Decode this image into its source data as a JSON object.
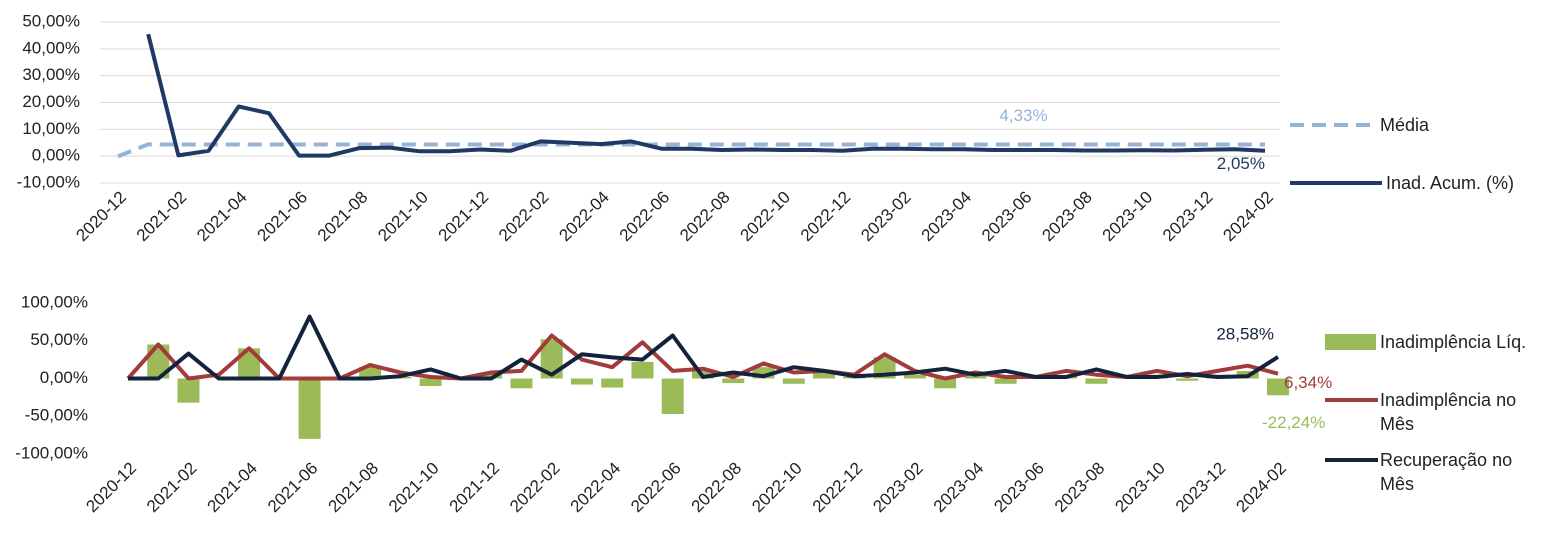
{
  "chart_data": [
    {
      "type": "line",
      "grid": true,
      "categories": [
        "2020-12",
        null,
        "2021-02",
        null,
        "2021-04",
        null,
        "2021-06",
        null,
        "2021-08",
        null,
        "2021-10",
        null,
        "2021-12",
        null,
        "2022-02",
        null,
        "2022-04",
        null,
        "2022-06",
        null,
        "2022-08",
        null,
        "2022-10",
        null,
        "2022-12",
        null,
        "2023-02",
        null,
        "2023-04",
        null,
        "2023-06",
        null,
        "2023-08",
        null,
        "2023-10",
        null,
        "2023-12",
        null,
        "2024-02"
      ],
      "ylim": [
        -10,
        50
      ],
      "yticks": [
        {
          "value": -10,
          "label": "-10,00%"
        },
        {
          "value": 0,
          "label": "0,00%"
        },
        {
          "value": 10,
          "label": "10,00%"
        },
        {
          "value": 20,
          "label": "20,00%"
        },
        {
          "value": 30,
          "label": "30,00%"
        },
        {
          "value": 40,
          "label": "40,00%"
        },
        {
          "value": 50,
          "label": "50,00%"
        }
      ],
      "series": [
        {
          "name": "Média",
          "color": "#95b3d7",
          "dashed": true,
          "values": [
            0,
            4.4,
            4.33,
            4.33,
            4.33,
            4.33,
            4.33,
            4.33,
            4.33,
            4.33,
            4.33,
            4.33,
            4.33,
            4.33,
            4.33,
            4.33,
            4.33,
            4.33,
            4.33,
            4.33,
            4.33,
            4.33,
            4.33,
            4.33,
            4.33,
            4.33,
            4.33,
            4.33,
            4.33,
            4.33,
            4.33,
            4.33,
            4.33,
            4.33,
            4.33,
            4.33,
            4.33,
            4.33,
            4.33
          ],
          "value_labels": [
            null,
            null,
            null,
            null,
            null,
            null,
            null,
            null,
            null,
            null,
            null,
            null,
            null,
            null,
            null,
            null,
            null,
            null,
            null,
            null,
            null,
            null,
            null,
            null,
            null,
            null,
            null,
            null,
            null,
            null,
            "4,33%",
            null,
            null,
            null,
            null,
            null,
            null,
            null,
            null
          ]
        },
        {
          "name": "Inad. Acum. (%)",
          "color": "#1f3864",
          "dashed": false,
          "values": [
            null,
            45.5,
            0.3,
            2,
            18.5,
            16,
            0.2,
            0.2,
            3,
            3.2,
            1.8,
            1.8,
            2.5,
            2,
            5.5,
            5,
            4.5,
            5.5,
            2.8,
            2.8,
            2.3,
            2.5,
            2.3,
            2.3,
            2,
            2.8,
            2.8,
            2.6,
            2.6,
            2.3,
            2.3,
            2.3,
            2.1,
            2.1,
            2.2,
            2.1,
            2.4,
            2.6,
            2.05
          ],
          "value_labels": [
            null,
            null,
            null,
            null,
            null,
            null,
            null,
            null,
            null,
            null,
            null,
            null,
            null,
            null,
            null,
            null,
            null,
            null,
            null,
            null,
            null,
            null,
            null,
            null,
            null,
            null,
            null,
            null,
            null,
            null,
            null,
            null,
            null,
            null,
            null,
            null,
            null,
            null,
            "2,05%"
          ]
        }
      ]
    },
    {
      "type": "combo",
      "grid": false,
      "categories": [
        "2020-12",
        null,
        "2021-02",
        null,
        "2021-04",
        null,
        "2021-06",
        null,
        "2021-08",
        null,
        "2021-10",
        null,
        "2021-12",
        null,
        "2022-02",
        null,
        "2022-04",
        null,
        "2022-06",
        null,
        "2022-08",
        null,
        "2022-10",
        null,
        "2022-12",
        null,
        "2023-02",
        null,
        "2023-04",
        null,
        "2023-06",
        null,
        "2023-08",
        null,
        "2023-10",
        null,
        "2023-12",
        null,
        "2024-02"
      ],
      "ylim": [
        -100,
        100
      ],
      "yticks": [
        {
          "value": -100,
          "label": "-100,00%"
        },
        {
          "value": -50,
          "label": "-50,00%"
        },
        {
          "value": 0,
          "label": "0,00%"
        },
        {
          "value": 50,
          "label": "50,00%"
        },
        {
          "value": 100,
          "label": "100,00%"
        }
      ],
      "series": [
        {
          "name": "Inadimplência Líq.",
          "type": "bar",
          "color": "#9bbb59",
          "values": [
            0,
            45,
            -32,
            0,
            40,
            0,
            -80,
            0,
            15,
            2,
            -10,
            0,
            8,
            -13,
            52,
            -8,
            -12,
            22,
            -47,
            10,
            -6,
            15,
            -7,
            8,
            2,
            28,
            5,
            -13,
            5,
            -7,
            2,
            4,
            -7,
            2,
            5,
            -3,
            5,
            10,
            -22.24
          ],
          "value_labels": [
            null,
            null,
            null,
            null,
            null,
            null,
            null,
            null,
            null,
            null,
            null,
            null,
            null,
            null,
            null,
            null,
            null,
            null,
            null,
            null,
            null,
            null,
            null,
            null,
            null,
            null,
            null,
            null,
            null,
            null,
            null,
            null,
            null,
            null,
            null,
            null,
            null,
            null,
            "-22,24%"
          ]
        },
        {
          "name": "Inadimplência no Mês",
          "type": "line",
          "color": "#a33b3b",
          "values": [
            0,
            45,
            0,
            5,
            40,
            0,
            0,
            0,
            18,
            8,
            2,
            0,
            8,
            10,
            57,
            25,
            15,
            48,
            10,
            13,
            2,
            20,
            8,
            10,
            5,
            32,
            10,
            0,
            8,
            2,
            2,
            10,
            5,
            2,
            10,
            3,
            10,
            17,
            6.34
          ],
          "value_labels": [
            null,
            null,
            null,
            null,
            null,
            null,
            null,
            null,
            null,
            null,
            null,
            null,
            null,
            null,
            null,
            null,
            null,
            null,
            null,
            null,
            null,
            null,
            null,
            null,
            null,
            null,
            null,
            null,
            null,
            null,
            null,
            null,
            null,
            null,
            null,
            null,
            null,
            null,
            "6,34%"
          ]
        },
        {
          "name": "Recuperação no Mês",
          "type": "line",
          "color": "#14233c",
          "values": [
            0,
            0,
            33,
            0,
            0,
            0,
            82,
            0,
            0,
            3,
            12,
            0,
            0,
            25,
            5,
            32,
            28,
            25,
            57,
            2,
            8,
            3,
            15,
            10,
            3,
            5,
            8,
            13,
            5,
            10,
            2,
            2,
            12,
            2,
            2,
            6,
            2,
            3,
            28.58
          ],
          "value_labels": [
            null,
            null,
            null,
            null,
            null,
            null,
            null,
            null,
            null,
            null,
            null,
            null,
            null,
            null,
            null,
            null,
            null,
            null,
            null,
            null,
            null,
            null,
            null,
            null,
            null,
            null,
            null,
            null,
            null,
            null,
            null,
            null,
            null,
            null,
            null,
            null,
            null,
            null,
            "28,58%"
          ]
        }
      ]
    }
  ]
}
